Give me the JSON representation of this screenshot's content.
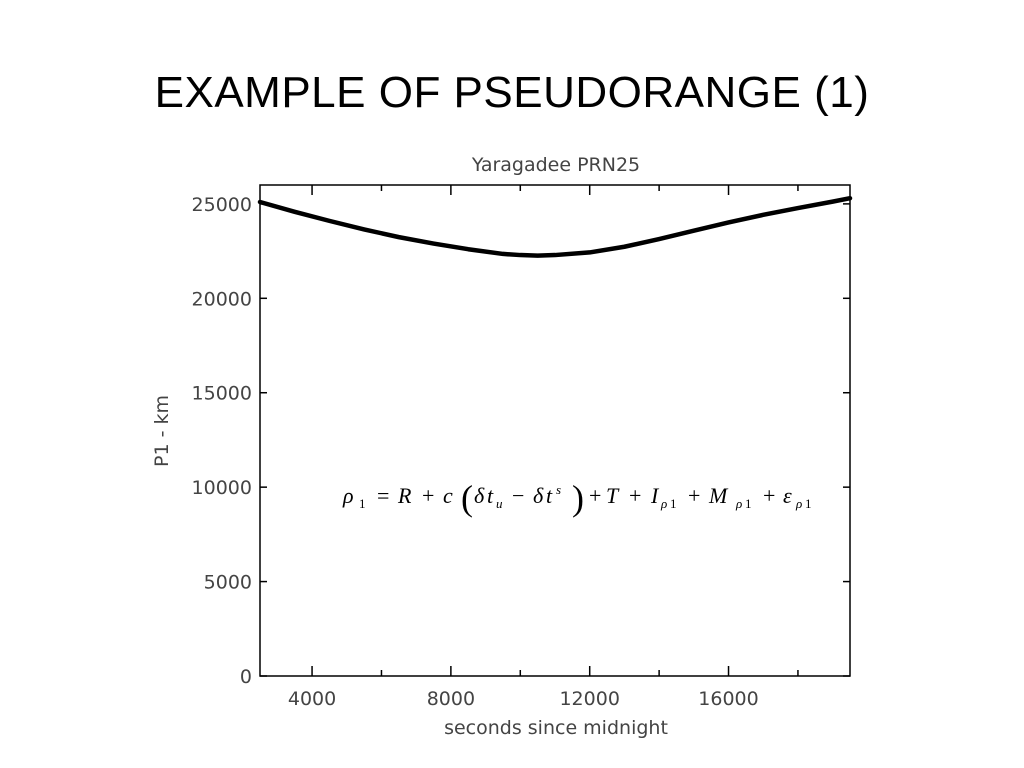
{
  "slide": {
    "title": "EXAMPLE OF PSEUDORANGE (1)"
  },
  "chart_data": {
    "type": "line",
    "title": "Yaragadee PRN25",
    "xlabel": "seconds since midnight",
    "ylabel": "P1 - km",
    "xlim": [
      2500,
      19500
    ],
    "ylim": [
      0,
      26000
    ],
    "x_ticks": [
      4000,
      8000,
      12000,
      16000
    ],
    "y_ticks": [
      0,
      5000,
      10000,
      15000,
      20000,
      25000
    ],
    "grid": false,
    "series": [
      {
        "x": [
          2500,
          3500,
          4500,
          5500,
          6500,
          7500,
          8500,
          9500,
          10000,
          10500,
          11000,
          12000,
          13000,
          14000,
          15000,
          16000,
          17000,
          18000,
          19000,
          19500
        ],
        "y": [
          25100,
          24580,
          24100,
          23650,
          23240,
          22900,
          22600,
          22350,
          22290,
          22260,
          22290,
          22430,
          22730,
          23140,
          23580,
          24020,
          24420,
          24780,
          25120,
          25300
        ]
      }
    ],
    "colors": {
      "line": "#000000",
      "axis": "#000000",
      "text": "#444444"
    }
  },
  "equation": {
    "rho": "ρ",
    "sub1": "1",
    "eq": "=",
    "R": "R",
    "plus1": "+",
    "c": "c",
    "lparen": "(",
    "delta1": "δ",
    "t1": "t",
    "u": "u",
    "minus": "−",
    "delta2": "δ",
    "t2": "t",
    "s": "s",
    "rparen": ")",
    "plus2": "+",
    "T": "T",
    "plus3": "+",
    "I": "I",
    "I_sub_rho": "ρ",
    "I_sub_1": "1",
    "plus4": "+",
    "M": "M",
    "M_sub_rho": "ρ",
    "M_sub_1": "1",
    "plus5": "+",
    "eps": "ε",
    "eps_sub_rho": "ρ",
    "eps_sub_1": "1"
  }
}
